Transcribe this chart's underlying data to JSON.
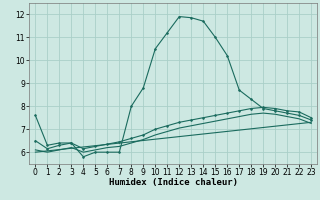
{
  "xlabel": "Humidex (Indice chaleur)",
  "xlim": [
    -0.5,
    23.5
  ],
  "ylim": [
    5.5,
    12.5
  ],
  "xticks": [
    0,
    1,
    2,
    3,
    4,
    5,
    6,
    7,
    8,
    9,
    10,
    11,
    12,
    13,
    14,
    15,
    16,
    17,
    18,
    19,
    20,
    21,
    22,
    23
  ],
  "yticks": [
    6,
    7,
    8,
    9,
    10,
    11,
    12
  ],
  "background_color": "#cde8e2",
  "grid_color": "#aacfc8",
  "line_color": "#1a6b5e",
  "line1_x": [
    0,
    1,
    2,
    3,
    4,
    5,
    6,
    7,
    8,
    9,
    10,
    11,
    12,
    13,
    14,
    15,
    16,
    17,
    18,
    19,
    20,
    21,
    22,
    23
  ],
  "line1_y": [
    7.6,
    6.3,
    6.4,
    6.4,
    5.8,
    6.0,
    6.0,
    6.0,
    8.0,
    8.8,
    10.5,
    11.2,
    11.9,
    11.85,
    11.7,
    11.0,
    10.2,
    8.7,
    8.3,
    7.9,
    7.8,
    7.7,
    7.6,
    7.4
  ],
  "line2_x": [
    0,
    1,
    2,
    3,
    4,
    5,
    6,
    7,
    8,
    9,
    10,
    11,
    12,
    13,
    14,
    15,
    16,
    17,
    18,
    19,
    20,
    21,
    22,
    23
  ],
  "line2_y": [
    6.5,
    6.15,
    6.3,
    6.4,
    6.15,
    6.25,
    6.35,
    6.45,
    6.6,
    6.75,
    7.0,
    7.15,
    7.3,
    7.4,
    7.5,
    7.6,
    7.7,
    7.8,
    7.9,
    7.95,
    7.9,
    7.8,
    7.75,
    7.5
  ],
  "line3_x": [
    0,
    1,
    2,
    3,
    4,
    5,
    6,
    7,
    8,
    9,
    10,
    11,
    12,
    13,
    14,
    15,
    16,
    17,
    18,
    19,
    20,
    21,
    22,
    23
  ],
  "line3_y": [
    6.1,
    6.0,
    6.1,
    6.2,
    6.0,
    6.1,
    6.2,
    6.25,
    6.4,
    6.55,
    6.75,
    6.9,
    7.05,
    7.15,
    7.25,
    7.35,
    7.45,
    7.55,
    7.65,
    7.7,
    7.65,
    7.55,
    7.45,
    7.25
  ],
  "line4_x": [
    0,
    23
  ],
  "line4_y": [
    6.0,
    7.3
  ]
}
